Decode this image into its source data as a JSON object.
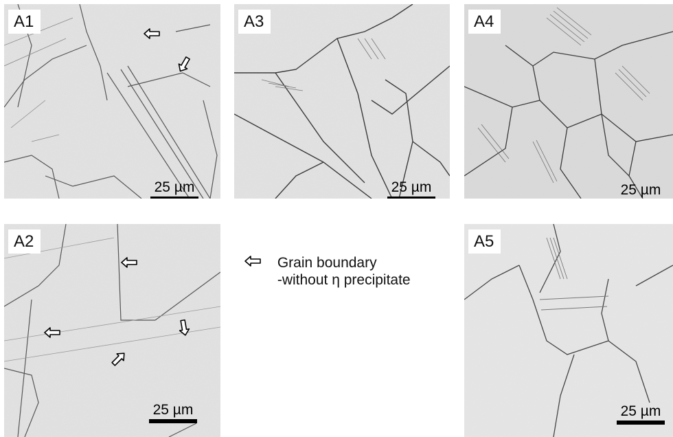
{
  "panels": {
    "a1": {
      "label": "A1",
      "scale": "25 µm"
    },
    "a2": {
      "label": "A2",
      "scale": "25 µm"
    },
    "a3": {
      "label": "A3",
      "scale": "25 µm"
    },
    "a4": {
      "label": "A4",
      "scale": "25 µm"
    },
    "a5": {
      "label": "A5",
      "scale": "25 µm"
    }
  },
  "legend": {
    "line1": "Grain boundary",
    "line2": "-without η precipitate",
    "icon": "hollow-arrow-left-icon"
  },
  "colors": {
    "background": "#e3e3e3",
    "boundary": "#444444",
    "arrow_outline": "#000000"
  }
}
